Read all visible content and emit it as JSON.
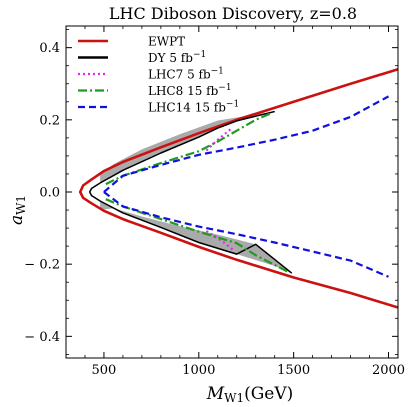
{
  "chart_data": {
    "type": "line",
    "title": "LHC Diboson Discovery, z=0.8",
    "xlabel": {
      "main": "M",
      "sub": "W1",
      "unit": "(GeV)"
    },
    "ylabel": {
      "main": "a",
      "sub": "W1"
    },
    "xlim": [
      300,
      2050
    ],
    "ylim": [
      -0.46,
      0.46
    ],
    "xticks": [
      500,
      1000,
      1500,
      2000
    ],
    "yticks": [
      -0.4,
      -0.2,
      0.0,
      0.2,
      0.4
    ],
    "ytick_labels": [
      "− 0.4",
      "− 0.2",
      "0.0",
      "0.2",
      "0.4"
    ],
    "legend_position": "top-right",
    "shaded_region": {
      "color": "#aaaaaa",
      "upper": [
        [
          480,
          0.025
        ],
        [
          600,
          0.06
        ],
        [
          800,
          0.108
        ],
        [
          1000,
          0.152
        ],
        [
          1100,
          0.177
        ],
        [
          1200,
          0.197
        ],
        [
          1300,
          0.21
        ],
        [
          1400,
          0.223
        ],
        [
          1100,
          0.198
        ],
        [
          900,
          0.16
        ],
        [
          700,
          0.118
        ],
        [
          550,
          0.077
        ],
        [
          480,
          0.05
        ]
      ],
      "lower": [
        [
          480,
          -0.025
        ],
        [
          600,
          -0.058
        ],
        [
          800,
          -0.098
        ],
        [
          1000,
          -0.14
        ],
        [
          1200,
          -0.172
        ],
        [
          1400,
          -0.205
        ],
        [
          1490,
          -0.225
        ],
        [
          1400,
          -0.19
        ],
        [
          1300,
          -0.145
        ],
        [
          1100,
          -0.118
        ],
        [
          900,
          -0.095
        ],
        [
          700,
          -0.068
        ],
        [
          550,
          -0.045
        ],
        [
          480,
          -0.05
        ]
      ]
    },
    "series": [
      {
        "name": "EWPT",
        "color": "#cc1111",
        "style": "solid",
        "segments": [
          [
            [
              2050,
              0.34
            ],
            [
              1800,
              0.3
            ],
            [
              1500,
              0.25
            ],
            [
              1200,
              0.2
            ],
            [
              1000,
              0.163
            ],
            [
              800,
              0.124
            ],
            [
              600,
              0.083
            ],
            [
              500,
              0.058
            ],
            [
              430,
              0.033
            ],
            [
              390,
              0.018
            ],
            [
              375,
              0.0
            ],
            [
              390,
              -0.016
            ],
            [
              430,
              -0.03
            ],
            [
              500,
              -0.052
            ],
            [
              600,
              -0.075
            ],
            [
              800,
              -0.113
            ],
            [
              1000,
              -0.152
            ],
            [
              1200,
              -0.188
            ],
            [
              1500,
              -0.237
            ],
            [
              1800,
              -0.28
            ],
            [
              2050,
              -0.32
            ]
          ]
        ]
      },
      {
        "name": "DY 5 fb",
        "superscript": "−1",
        "color": "#000000",
        "style": "solid",
        "segments": [
          [
            [
              1400,
              0.223
            ],
            [
              1300,
              0.21
            ],
            [
              1200,
              0.197
            ],
            [
              1100,
              0.177
            ],
            [
              1000,
              0.152
            ],
            [
              800,
              0.108
            ],
            [
              600,
              0.06
            ],
            [
              480,
              0.025
            ],
            [
              435,
              0.01
            ],
            [
              425,
              0.0
            ],
            [
              435,
              -0.01
            ],
            [
              480,
              -0.025
            ],
            [
              600,
              -0.058
            ],
            [
              800,
              -0.098
            ],
            [
              1000,
              -0.14
            ],
            [
              1200,
              -0.172
            ],
            [
              1300,
              -0.145
            ],
            [
              1490,
              -0.225
            ]
          ]
        ]
      },
      {
        "name": "LHC7 5 fb",
        "superscript": "−1",
        "color": "#ee22ee",
        "style": "dotted",
        "segments": [
          [
            [
              1040,
              0.115
            ],
            [
              1100,
              0.145
            ],
            [
              1170,
              0.175
            ]
          ],
          [
            [
              1040,
              -0.108
            ],
            [
              1120,
              -0.135
            ],
            [
              1180,
              -0.16
            ]
          ]
        ]
      },
      {
        "name": "LHC8 15 fb",
        "superscript": "−1",
        "color": "#229922",
        "style": "dashdot",
        "segments": [
          [
            [
              510,
              0.022
            ],
            [
              600,
              0.045
            ],
            [
              800,
              0.08
            ],
            [
              1000,
              0.113
            ],
            [
              1100,
              0.14
            ],
            [
              1200,
              0.17
            ],
            [
              1300,
              0.2
            ],
            [
              1380,
              0.218
            ]
          ],
          [
            [
              510,
              -0.02
            ],
            [
              600,
              -0.04
            ],
            [
              800,
              -0.075
            ],
            [
              1000,
              -0.11
            ],
            [
              1200,
              -0.142
            ],
            [
              1300,
              -0.175
            ],
            [
              1480,
              -0.224
            ]
          ]
        ]
      },
      {
        "name": "LHC14 15 fb",
        "superscript": "−1",
        "color": "#1111dd",
        "style": "dashed",
        "segments": [
          [
            [
              500,
              0.0
            ],
            [
              600,
              0.045
            ],
            [
              800,
              0.075
            ],
            [
              1000,
              0.103
            ],
            [
              1200,
              0.123
            ],
            [
              1400,
              0.145
            ],
            [
              1600,
              0.17
            ],
            [
              1800,
              0.208
            ],
            [
              2000,
              0.265
            ]
          ],
          [
            [
              500,
              0.0
            ],
            [
              600,
              -0.04
            ],
            [
              800,
              -0.07
            ],
            [
              1000,
              -0.096
            ],
            [
              1200,
              -0.117
            ],
            [
              1400,
              -0.14
            ],
            [
              1600,
              -0.165
            ],
            [
              1800,
              -0.19
            ],
            [
              2000,
              -0.235
            ]
          ]
        ]
      }
    ]
  }
}
